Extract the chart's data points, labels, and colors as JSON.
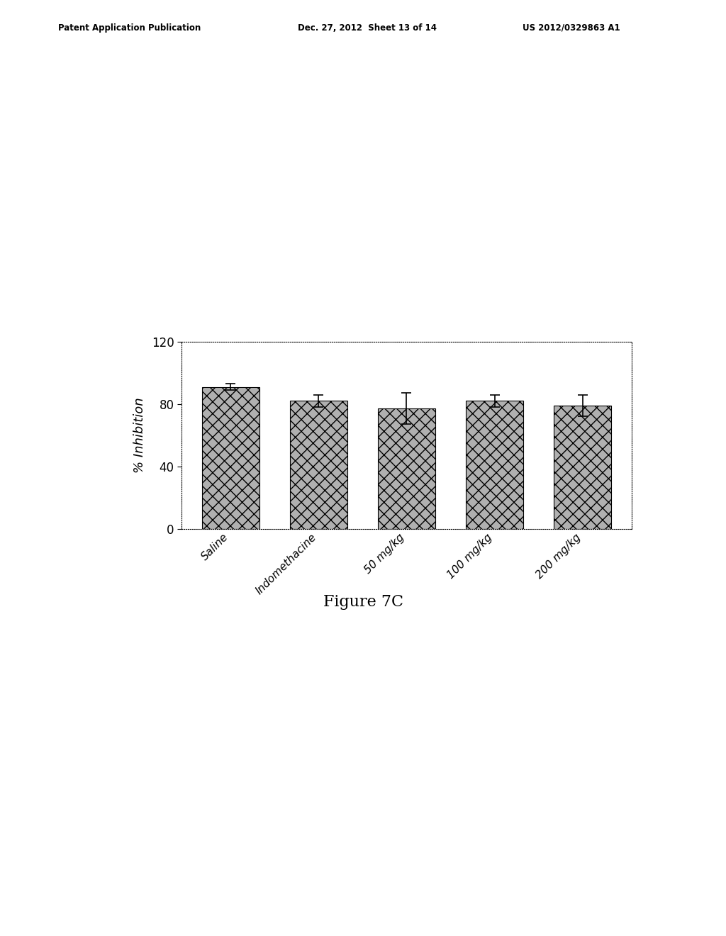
{
  "categories": [
    "Saline",
    "Indomethacine",
    "50 mg/kg",
    "100 mg/kg",
    "200 mg/kg"
  ],
  "values": [
    91,
    82,
    77,
    82,
    79
  ],
  "errors": [
    2,
    4,
    10,
    4,
    7
  ],
  "ylabel": "% Inhibition",
  "ylim": [
    0,
    120
  ],
  "yticks": [
    0,
    40,
    80,
    120
  ],
  "figure_caption": "Figure 7C",
  "header_left": "Patent Application Publication",
  "header_mid": "Dec. 27, 2012  Sheet 13 of 14",
  "header_right": "US 2012/0329863 A1",
  "bar_color": "#b0b0b0",
  "bar_hatch": "xx",
  "background_color": "#ffffff",
  "fig_width": 10.24,
  "fig_height": 13.2
}
